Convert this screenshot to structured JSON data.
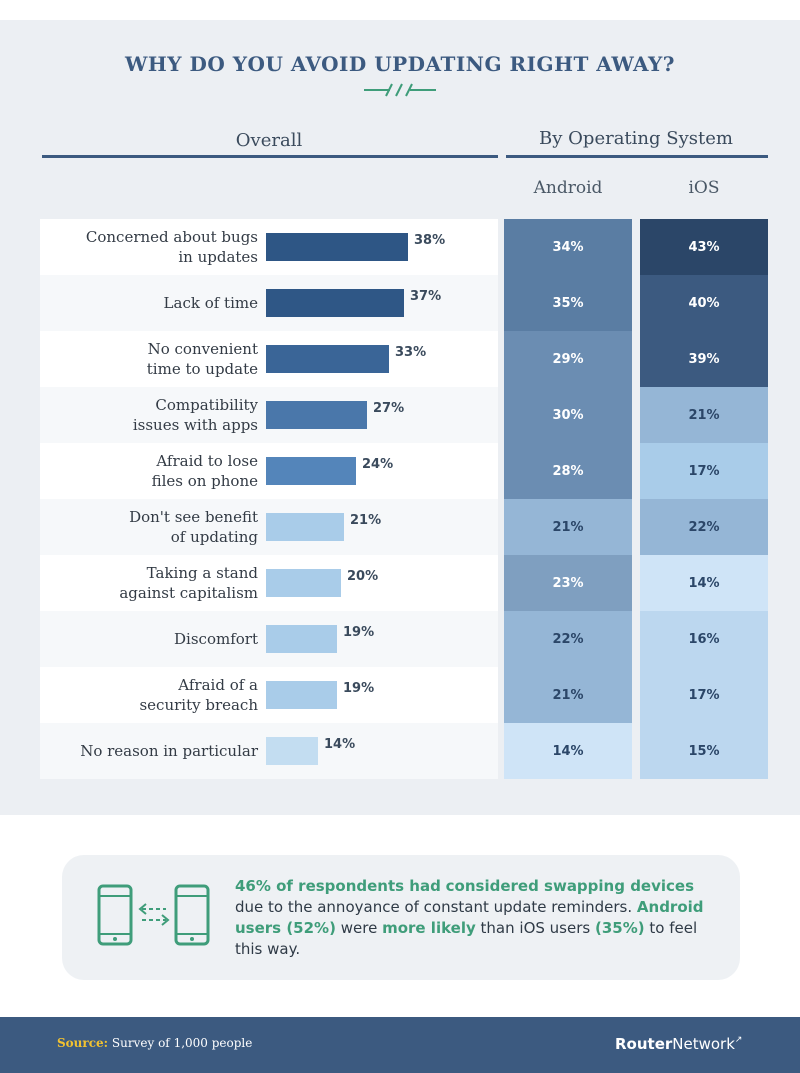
{
  "title": "WHY DO YOU AVOID UPDATING RIGHT AWAY?",
  "headers": {
    "overall": "Overall",
    "by_os": "By Operating System",
    "android": "Android",
    "ios": "iOS"
  },
  "chart_data": {
    "type": "bar",
    "title": "WHY DO YOU AVOID UPDATING RIGHT AWAY?",
    "categories": [
      [
        "Concerned about bugs",
        "in updates"
      ],
      [
        "Lack of time"
      ],
      [
        "No convenient",
        "time to update"
      ],
      [
        "Compatibility",
        "issues with apps"
      ],
      [
        "Afraid to lose",
        "files on phone"
      ],
      [
        "Don't see benefit",
        "of updating"
      ],
      [
        "Taking a stand",
        "against capitalism"
      ],
      [
        "Discomfort"
      ],
      [
        "Afraid of a",
        "security breach"
      ],
      [
        "No reason in particular"
      ]
    ],
    "series": [
      {
        "name": "Overall",
        "values": [
          38,
          37,
          33,
          27,
          24,
          21,
          20,
          19,
          19,
          14
        ]
      },
      {
        "name": "Android",
        "values": [
          34,
          35,
          29,
          30,
          28,
          21,
          23,
          22,
          21,
          14
        ]
      },
      {
        "name": "iOS",
        "values": [
          43,
          40,
          39,
          21,
          17,
          22,
          14,
          16,
          17,
          15
        ]
      }
    ],
    "unit": "%",
    "colors": {
      "bar_shades": [
        "#2e5685",
        "#2f5786",
        "#3a6597",
        "#4a77aa",
        "#5485ba",
        "#a9cce9",
        "#a9cce9",
        "#a9cce9",
        "#a9cce9",
        "#c3ddf1"
      ],
      "android_cells": [
        "#5a7da3",
        "#5a7da3",
        "#6b8db2",
        "#6b8db2",
        "#6b8db2",
        "#95b6d6",
        "#7f9fc0",
        "#95b6d6",
        "#95b6d6",
        "#cfe4f7"
      ],
      "ios_cells": [
        "#2b4668",
        "#3c5a80",
        "#3c5a80",
        "#95b6d6",
        "#a9cce9",
        "#95b6d6",
        "#cfe4f7",
        "#bcd7ef",
        "#bcd7ef",
        "#bcd7ef"
      ]
    }
  },
  "callout": {
    "part1": "46% of respondents had",
    "part2": "considered swapping devices",
    "part3": "due to the annoyance of constant update reminders.",
    "part4": "Android users (52%)",
    "part5": "were",
    "part6": "more likely",
    "part7": "than iOS users",
    "part8": "(35%)",
    "part9": "to feel this way."
  },
  "footer": {
    "source_label": "Source:",
    "source_text": "Survey of 1,000 people",
    "brand_bold": "Router",
    "brand_rest": "Network"
  }
}
